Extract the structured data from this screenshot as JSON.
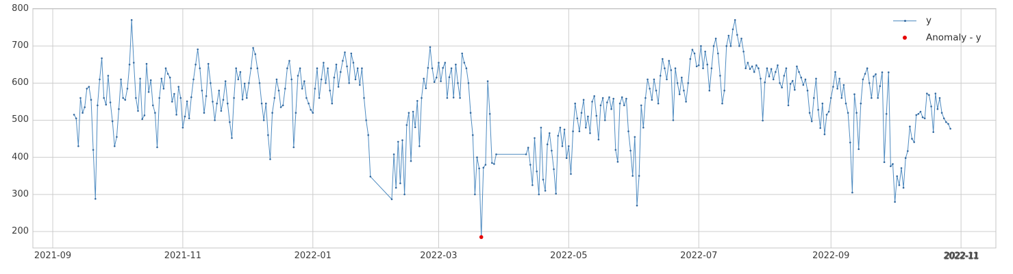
{
  "legend": {
    "series_label": "y",
    "anomaly_label": "Anomaly - y"
  },
  "colors": {
    "line": "#4d8ac0",
    "marker": "#33699f",
    "anomaly": "#e60000",
    "grid": "#cccccc",
    "border": "#c4c4c4",
    "tick_text": "#3b3b3b"
  },
  "chart_data": {
    "type": "line",
    "title": "",
    "xlabel": "",
    "ylabel": "",
    "grid": true,
    "legend_position": "top-right",
    "x_start_date": "2021-09-11",
    "x_frequency": "daily",
    "ylim": [
      155,
      802
    ],
    "y_ticks": [
      200,
      300,
      400,
      500,
      600,
      700,
      800
    ],
    "x_ticks": [
      {
        "label": "2021-09",
        "day": 0
      },
      {
        "label": "2021-11",
        "day": 61
      },
      {
        "label": "2022-01",
        "day": 122
      },
      {
        "label": "2022-03",
        "day": 181
      },
      {
        "label": "2022-05",
        "day": 242
      },
      {
        "label": "2022-07",
        "day": 303
      },
      {
        "label": "2022-09",
        "day": 365
      },
      {
        "label": "2022-11",
        "day": 426,
        "garbled": true
      }
    ],
    "series": [
      {
        "name": "y",
        "values": [
          515,
          505,
          430,
          560,
          520,
          535,
          585,
          590,
          555,
          420,
          288,
          540,
          610,
          667,
          560,
          542,
          620,
          548,
          497,
          430,
          455,
          530,
          610,
          560,
          555,
          585,
          650,
          770,
          655,
          560,
          525,
          612,
          503,
          513,
          652,
          576,
          608,
          540,
          520,
          427,
          560,
          612,
          585,
          640,
          625,
          615,
          550,
          571,
          515,
          590,
          560,
          480,
          510,
          551,
          505,
          562,
          610,
          650,
          691,
          640,
          580,
          520,
          565,
          652,
          600,
          550,
          500,
          545,
          580,
          525,
          555,
          605,
          545,
          495,
          452,
          560,
          640,
          610,
          630,
          556,
          599,
          560,
          600,
          640,
          695,
          678,
          640,
          600,
          545,
          500,
          545,
          460,
          395,
          520,
          560,
          610,
          580,
          535,
          540,
          585,
          640,
          660,
          610,
          427,
          520,
          620,
          640,
          585,
          605,
          560,
          545,
          528,
          520,
          585,
          640,
          560,
          610,
          655,
          600,
          640,
          580,
          545,
          615,
          650,
          590,
          630,
          660,
          683,
          645,
          600,
          680,
          655,
          610,
          640,
          595,
          640,
          560,
          500,
          460,
          348,
          null,
          null,
          null,
          null,
          null,
          null,
          null,
          null,
          null,
          287,
          408,
          318,
          442,
          330,
          446,
          300,
          487,
          520,
          390,
          523,
          481,
          552,
          430,
          560,
          612,
          586,
          641,
          697,
          640,
          603,
          615,
          655,
          605,
          641,
          655,
          560,
          616,
          640,
          561,
          650,
          600,
          560,
          680,
          655,
          640,
          600,
          520,
          460,
          300,
          400,
          370,
          185,
          372,
          380,
          605,
          517,
          385,
          382,
          408,
          null,
          null,
          null,
          null,
          null,
          null,
          null,
          null,
          null,
          null,
          null,
          null,
          null,
          408,
          426,
          380,
          325,
          452,
          362,
          300,
          480,
          340,
          310,
          435,
          465,
          418,
          368,
          302,
          458,
          480,
          430,
          475,
          398,
          430,
          355,
          470,
          545,
          505,
          470,
          520,
          555,
          480,
          510,
          465,
          550,
          565,
          512,
          448,
          540,
          560,
          500,
          548,
          562,
          530,
          558,
          420,
          388,
          545,
          562,
          540,
          558,
          470,
          418,
          350,
          455,
          270,
          350,
          540,
          480,
          560,
          610,
          585,
          555,
          610,
          580,
          545,
          620,
          665,
          640,
          610,
          660,
          635,
          500,
          640,
          600,
          570,
          615,
          580,
          550,
          600,
          665,
          690,
          680,
          645,
          648,
          700,
          640,
          685,
          650,
          580,
          640,
          700,
          720,
          680,
          620,
          545,
          580,
          700,
          728,
          700,
          745,
          770,
          730,
          700,
          720,
          685,
          640,
          655,
          638,
          645,
          630,
          648,
          640,
          612,
          499,
          602,
          640,
          618,
          638,
          610,
          630,
          648,
          600,
          588,
          620,
          640,
          540,
          598,
          606,
          582,
          645,
          630,
          615,
          595,
          610,
          580,
          520,
          497,
          560,
          612,
          528,
          479,
          545,
          462,
          515,
          523,
          560,
          590,
          630,
          585,
          612,
          560,
          595,
          545,
          520,
          440,
          305,
          570,
          520,
          422,
          545,
          610,
          625,
          640,
          600,
          560,
          618,
          624,
          560,
          592,
          629,
          387,
          517,
          629,
          376,
          382,
          280,
          349,
          325,
          371,
          318,
          398,
          417,
          483,
          450,
          441,
          514,
          517,
          523,
          508,
          505,
          572,
          568,
          537,
          468,
          572,
          530,
          560,
          520,
          505,
          495,
          490,
          477
        ]
      }
    ],
    "anomalies": [
      {
        "series": "y",
        "date": "2022-03-21",
        "index": 191,
        "value": 185
      }
    ]
  }
}
